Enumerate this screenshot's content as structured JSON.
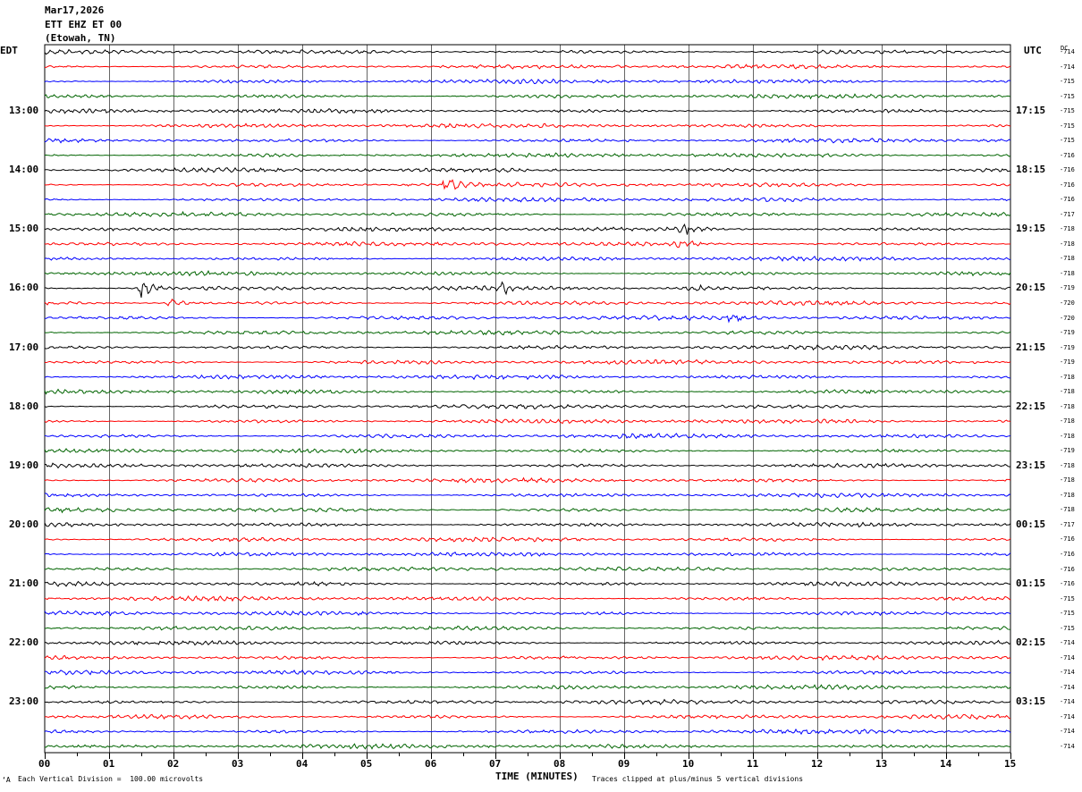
{
  "header": {
    "date": "Mar17,2026",
    "station": "ETT EHZ ET 00",
    "location": "(Etowah, TN)"
  },
  "left_tz": "EDT",
  "right_tz": "UTC",
  "dc_header": "DC",
  "footer": {
    "scale_note": "Each Vertical Division =  100.00 microvolts",
    "xlabel": "TIME (MINUTES)",
    "clip_note": "Traces clipped at plus/minus 5 vertical divisions",
    "corner_mark": "‘A"
  },
  "colors": {
    "trace_cycle": [
      "#000000",
      "#ff0000",
      "#0000ff",
      "#006400"
    ],
    "grid": "#000000",
    "background": "#ffffff"
  },
  "chart_data": {
    "type": "line",
    "title": "",
    "xlabel": "TIME (MINUTES)",
    "xlim": [
      0,
      15
    ],
    "x_ticks": [
      "00",
      "01",
      "02",
      "03",
      "04",
      "05",
      "06",
      "07",
      "08",
      "09",
      "10",
      "11",
      "12",
      "13",
      "14",
      "15"
    ],
    "grid": true,
    "rows": 48,
    "left_hour_labels": [
      "13:00",
      "14:00",
      "15:00",
      "16:00",
      "17:00",
      "18:00",
      "19:00",
      "20:00",
      "21:00",
      "22:00",
      "23:00"
    ],
    "right_hour_labels": [
      "17:15",
      "18:15",
      "19:15",
      "20:15",
      "21:15",
      "22:15",
      "23:15",
      "00:15",
      "01:15",
      "02:15",
      "03:15"
    ],
    "dc_offsets": [
      "-714",
      "-714",
      "-715",
      "-715",
      "-715",
      "-715",
      "-715",
      "-716",
      "-716",
      "-716",
      "-716",
      "-717",
      "-718",
      "-718",
      "-718",
      "-718",
      "-719",
      "-720",
      "-720",
      "-719",
      "-719",
      "-719",
      "-718",
      "-718",
      "-718",
      "-718",
      "-718",
      "-719",
      "-718",
      "-718",
      "-718",
      "-718",
      "-717",
      "-716",
      "-716",
      "-716",
      "-716",
      "-715",
      "-715",
      "-715",
      "-714",
      "-714",
      "-714",
      "-714",
      "-714",
      "-714",
      "-714",
      "-714"
    ],
    "events": [
      {
        "row": 9,
        "minute": 6.2,
        "amplitude": 3.0
      },
      {
        "row": 12,
        "minute": 9.9,
        "amplitude": 1.8
      },
      {
        "row": 13,
        "minute": 9.8,
        "amplitude": 1.8
      },
      {
        "row": 16,
        "minute": 1.5,
        "amplitude": 3.2
      },
      {
        "row": 16,
        "minute": 7.1,
        "amplitude": 1.6
      },
      {
        "row": 16,
        "minute": 10.0,
        "amplitude": 1.6
      },
      {
        "row": 17,
        "minute": 1.9,
        "amplitude": 2.0
      },
      {
        "row": 18,
        "minute": 10.6,
        "amplitude": 1.6
      }
    ]
  }
}
